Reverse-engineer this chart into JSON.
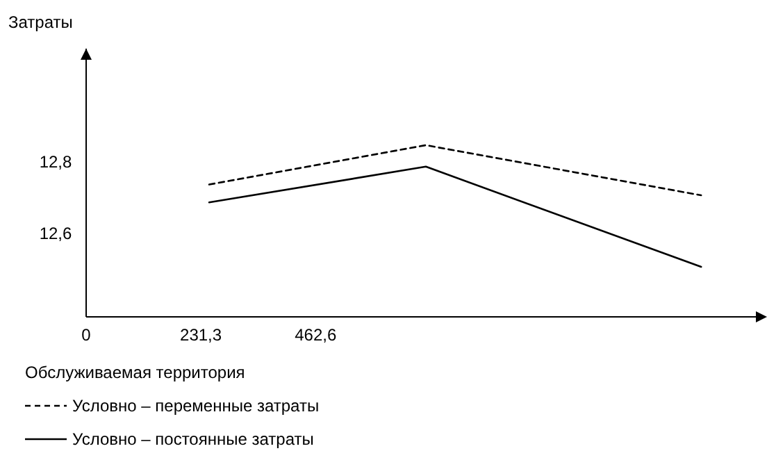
{
  "chart_data": {
    "type": "line",
    "xlabel": "Обслуживаемая территория",
    "ylabel": "Затраты",
    "x": [
      248,
      685,
      1240
    ],
    "xlim": [
      0,
      1356
    ],
    "xticks": [
      {
        "value": 0,
        "label": "0"
      },
      {
        "value": 231.3,
        "label": "231,3"
      },
      {
        "value": 462.6,
        "label": "462,6"
      }
    ],
    "ylim": [
      12.37,
      13.12
    ],
    "yticks": [
      {
        "value": 12.6,
        "label": "12,6"
      },
      {
        "value": 12.8,
        "label": "12,8"
      }
    ],
    "grid": false,
    "legend": "bottom",
    "marker": "none",
    "series": [
      {
        "name": "Условно – переменные затраты",
        "color": "#000000",
        "line_style": "dashed",
        "values": [
          12.74,
          12.85,
          12.71
        ]
      },
      {
        "name": "Условно – постоянные затраты",
        "color": "#000000",
        "line_style": "solid",
        "values": [
          12.69,
          12.79,
          12.51
        ]
      }
    ]
  }
}
